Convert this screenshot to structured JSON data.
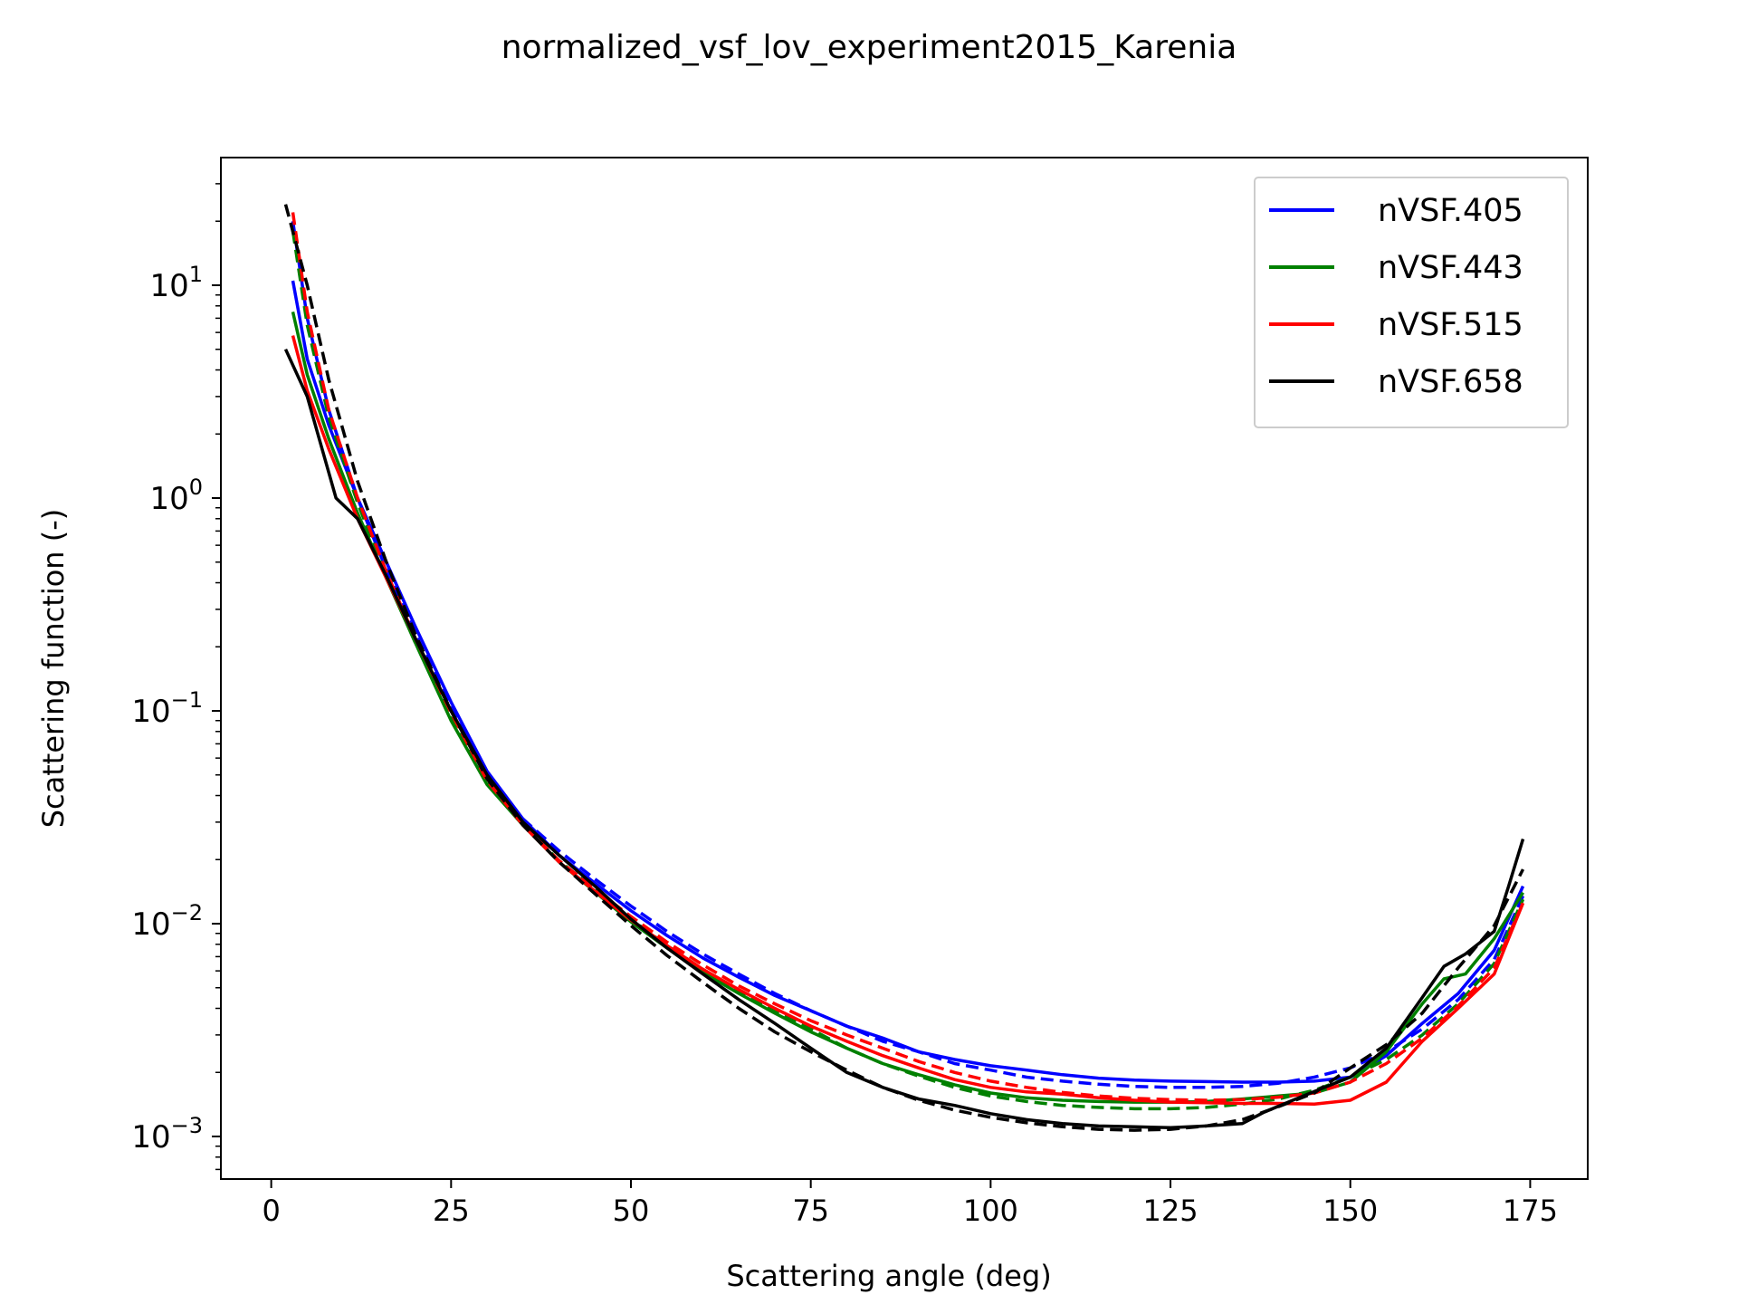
{
  "chart_data": {
    "type": "line",
    "title": "normalized_vsf_lov_experiment2015_Karenia",
    "xlabel": "Scattering angle (deg)",
    "ylabel": "Scattering function (-)",
    "xlim": [
      -7,
      183
    ],
    "ylim_log10": [
      -3.2,
      1.6
    ],
    "yscale": "log",
    "grid": false,
    "legend_position": "top-right",
    "x_ticks": [
      0,
      25,
      50,
      75,
      100,
      125,
      150,
      175
    ],
    "x_tick_labels": [
      "0",
      "25",
      "50",
      "75",
      "100",
      "125",
      "150",
      "175"
    ],
    "y_ticks": [
      {
        "base": "10",
        "exp": "1",
        "value": 10
      },
      {
        "base": "10",
        "exp": "0",
        "value": 1
      },
      {
        "base": "10",
        "exp": "−1",
        "value": 0.1
      },
      {
        "base": "10",
        "exp": "−2",
        "value": 0.01
      },
      {
        "base": "10",
        "exp": "−3",
        "value": 0.001
      }
    ],
    "series": [
      {
        "name": "nVSF.405",
        "color": "#0000ff",
        "style": "solid",
        "x": [
          3,
          5,
          8,
          12,
          16,
          20,
          25,
          30,
          35,
          40,
          45,
          50,
          55,
          60,
          65,
          70,
          75,
          80,
          85,
          90,
          95,
          100,
          105,
          110,
          115,
          120,
          125,
          130,
          135,
          140,
          145,
          150,
          155,
          160,
          165,
          170,
          174
        ],
        "y": [
          10.5,
          4.5,
          2.2,
          1.0,
          0.5,
          0.25,
          0.11,
          0.052,
          0.031,
          0.021,
          0.0155,
          0.0115,
          0.0088,
          0.0069,
          0.0056,
          0.0046,
          0.0039,
          0.0033,
          0.0029,
          0.0025,
          0.0023,
          0.00215,
          0.00205,
          0.00195,
          0.00188,
          0.00184,
          0.00182,
          0.00181,
          0.0018,
          0.0018,
          0.00182,
          0.0019,
          0.0024,
          0.0034,
          0.0047,
          0.0075,
          0.015
        ]
      },
      {
        "name": "nVSF.405 fit",
        "color": "#0000ff",
        "style": "dashed",
        "x": [
          3,
          5,
          8,
          12,
          16,
          20,
          25,
          30,
          35,
          40,
          45,
          50,
          55,
          60,
          65,
          70,
          75,
          80,
          85,
          90,
          95,
          100,
          105,
          110,
          115,
          120,
          125,
          130,
          135,
          140,
          145,
          150,
          155,
          160,
          165,
          170,
          174
        ],
        "y": [
          20,
          7,
          2.6,
          1.0,
          0.46,
          0.23,
          0.105,
          0.05,
          0.031,
          0.022,
          0.0162,
          0.0121,
          0.0092,
          0.0072,
          0.0058,
          0.0047,
          0.0039,
          0.0033,
          0.0028,
          0.0025,
          0.0022,
          0.00205,
          0.0019,
          0.00182,
          0.00176,
          0.00172,
          0.0017,
          0.0017,
          0.00172,
          0.00178,
          0.0019,
          0.0021,
          0.0025,
          0.0032,
          0.0044,
          0.0068,
          0.0135
        ]
      },
      {
        "name": "nVSF.443",
        "color": "#008000",
        "style": "solid",
        "x": [
          3,
          5,
          8,
          12,
          16,
          20,
          25,
          30,
          35,
          40,
          45,
          50,
          55,
          60,
          65,
          70,
          75,
          80,
          85,
          90,
          95,
          100,
          105,
          110,
          115,
          120,
          125,
          130,
          135,
          140,
          145,
          150,
          155,
          160,
          163,
          166,
          170,
          174
        ],
        "y": [
          7.5,
          3.8,
          1.9,
          0.85,
          0.42,
          0.21,
          0.09,
          0.045,
          0.029,
          0.0195,
          0.0141,
          0.0102,
          0.0077,
          0.0059,
          0.0047,
          0.0038,
          0.0031,
          0.0026,
          0.0022,
          0.00195,
          0.00175,
          0.0016,
          0.00152,
          0.00148,
          0.00146,
          0.00145,
          0.00145,
          0.00146,
          0.0015,
          0.00155,
          0.0016,
          0.0018,
          0.0025,
          0.0042,
          0.0055,
          0.0058,
          0.0085,
          0.014
        ]
      },
      {
        "name": "nVSF.443 fit",
        "color": "#008000",
        "style": "dashed",
        "x": [
          3,
          5,
          8,
          12,
          16,
          20,
          25,
          30,
          35,
          40,
          45,
          50,
          55,
          60,
          65,
          70,
          75,
          80,
          85,
          90,
          95,
          100,
          105,
          110,
          115,
          120,
          125,
          130,
          135,
          140,
          145,
          150,
          155,
          160,
          165,
          170,
          174
        ],
        "y": [
          18,
          6.5,
          2.4,
          0.95,
          0.43,
          0.21,
          0.092,
          0.046,
          0.029,
          0.0198,
          0.0144,
          0.0105,
          0.0079,
          0.0061,
          0.0048,
          0.0039,
          0.0032,
          0.0026,
          0.0022,
          0.00192,
          0.0017,
          0.00155,
          0.00146,
          0.0014,
          0.00137,
          0.00135,
          0.00135,
          0.00137,
          0.00142,
          0.0015,
          0.00165,
          0.0019,
          0.0023,
          0.003,
          0.0042,
          0.0065,
          0.013
        ]
      },
      {
        "name": "nVSF.515",
        "color": "#ff0000",
        "style": "solid",
        "x": [
          3,
          5,
          8,
          12,
          16,
          20,
          25,
          30,
          35,
          40,
          45,
          50,
          55,
          60,
          65,
          70,
          75,
          80,
          85,
          90,
          95,
          100,
          105,
          110,
          115,
          120,
          125,
          130,
          135,
          140,
          145,
          150,
          155,
          160,
          165,
          170,
          174
        ],
        "y": [
          5.8,
          3.2,
          1.7,
          0.8,
          0.42,
          0.22,
          0.1,
          0.048,
          0.029,
          0.0195,
          0.0142,
          0.0104,
          0.0079,
          0.0061,
          0.0049,
          0.004,
          0.0033,
          0.0028,
          0.0024,
          0.0021,
          0.00185,
          0.0017,
          0.00162,
          0.00158,
          0.00152,
          0.00148,
          0.00145,
          0.00144,
          0.00143,
          0.00143,
          0.00142,
          0.00148,
          0.0018,
          0.0028,
          0.004,
          0.0058,
          0.0125
        ]
      },
      {
        "name": "nVSF.515 fit",
        "color": "#ff0000",
        "style": "dashed",
        "x": [
          3,
          5,
          8,
          12,
          16,
          20,
          25,
          30,
          35,
          40,
          45,
          50,
          55,
          60,
          65,
          70,
          75,
          80,
          85,
          90,
          95,
          100,
          105,
          110,
          115,
          120,
          125,
          130,
          135,
          140,
          145,
          150,
          155,
          160,
          165,
          170,
          174
        ],
        "y": [
          22,
          7.5,
          2.6,
          1.0,
          0.45,
          0.22,
          0.098,
          0.047,
          0.029,
          0.0198,
          0.0145,
          0.0108,
          0.0082,
          0.0064,
          0.0051,
          0.0042,
          0.0035,
          0.003,
          0.0026,
          0.00225,
          0.002,
          0.00182,
          0.0017,
          0.00161,
          0.00155,
          0.00151,
          0.00149,
          0.00148,
          0.00149,
          0.00153,
          0.0016,
          0.0018,
          0.0022,
          0.0029,
          0.0041,
          0.0062,
          0.0125
        ]
      },
      {
        "name": "nVSF.658",
        "color": "#000000",
        "style": "solid",
        "x": [
          2,
          5,
          9,
          12,
          16,
          20,
          25,
          30,
          35,
          40,
          45,
          50,
          55,
          60,
          65,
          70,
          75,
          80,
          85,
          90,
          95,
          100,
          105,
          110,
          115,
          120,
          125,
          130,
          135,
          138,
          142,
          146,
          150,
          155,
          160,
          163,
          166,
          170,
          172,
          174
        ],
        "y": [
          5.0,
          3.0,
          1.0,
          0.8,
          0.43,
          0.22,
          0.1,
          0.05,
          0.03,
          0.021,
          0.015,
          0.0105,
          0.0077,
          0.0058,
          0.0044,
          0.0034,
          0.0026,
          0.002,
          0.0017,
          0.0015,
          0.0014,
          0.00128,
          0.0012,
          0.00115,
          0.00112,
          0.00111,
          0.0011,
          0.00112,
          0.00115,
          0.0013,
          0.00148,
          0.00168,
          0.0019,
          0.0026,
          0.0045,
          0.0063,
          0.0072,
          0.0092,
          0.015,
          0.025
        ]
      },
      {
        "name": "nVSF.658 fit",
        "color": "#000000",
        "style": "dashed",
        "x": [
          2,
          5,
          8,
          12,
          16,
          20,
          25,
          30,
          35,
          40,
          45,
          50,
          55,
          60,
          65,
          70,
          75,
          80,
          85,
          90,
          95,
          100,
          105,
          110,
          115,
          120,
          125,
          130,
          135,
          140,
          145,
          150,
          155,
          160,
          165,
          170,
          174
        ],
        "y": [
          24,
          10,
          3.6,
          1.2,
          0.5,
          0.23,
          0.1,
          0.048,
          0.029,
          0.0195,
          0.0138,
          0.0098,
          0.0071,
          0.0053,
          0.004,
          0.0031,
          0.0025,
          0.00205,
          0.0017,
          0.00148,
          0.00133,
          0.00123,
          0.00116,
          0.00111,
          0.00108,
          0.00107,
          0.00108,
          0.00112,
          0.0012,
          0.00138,
          0.0016,
          0.0021,
          0.0027,
          0.0038,
          0.0062,
          0.0098,
          0.018
        ]
      }
    ],
    "legend": [
      {
        "label": "nVSF.405",
        "color": "#0000ff"
      },
      {
        "label": "nVSF.443",
        "color": "#008000"
      },
      {
        "label": "nVSF.515",
        "color": "#ff0000"
      },
      {
        "label": "nVSF.658",
        "color": "#000000"
      }
    ]
  }
}
